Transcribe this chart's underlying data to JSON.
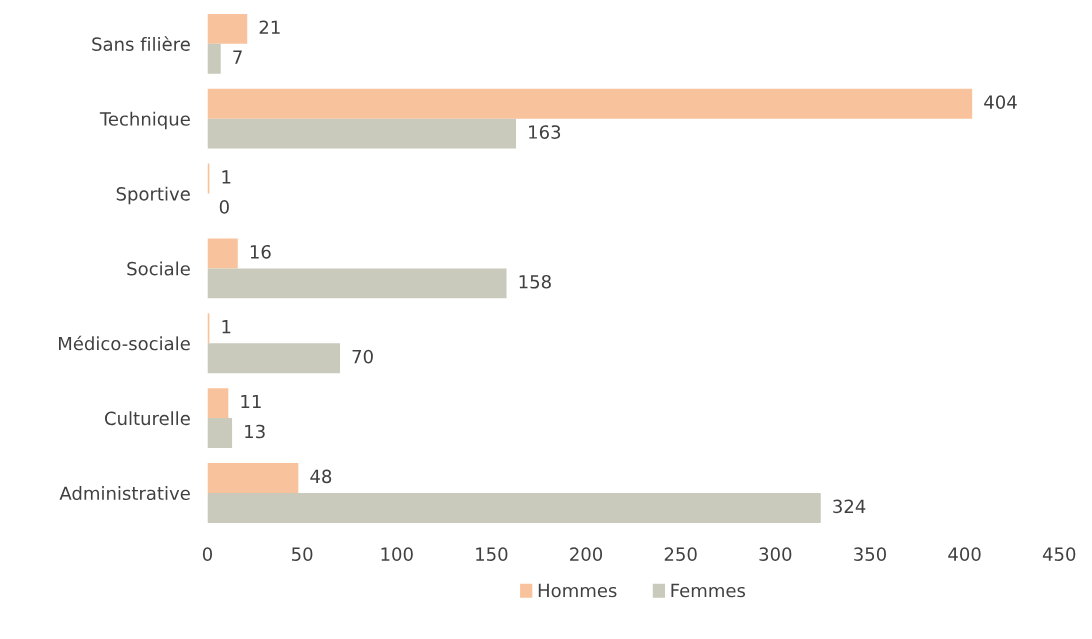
{
  "chart_data": {
    "type": "bar",
    "orientation": "horizontal",
    "categories": [
      "Sans filière",
      "Technique",
      "Sportive",
      "Sociale",
      "Médico-sociale",
      "Culturelle",
      "Administrative"
    ],
    "series": [
      {
        "name": "Hommes",
        "color": "#f8c29c",
        "values": [
          21,
          404,
          1,
          16,
          1,
          11,
          48
        ]
      },
      {
        "name": "Femmes",
        "color": "#c9cabb",
        "values": [
          7,
          163,
          0,
          158,
          70,
          13,
          324
        ]
      }
    ],
    "xlim": [
      0,
      450
    ],
    "xticks": [
      0,
      50,
      100,
      150,
      200,
      250,
      300,
      350,
      400,
      450
    ],
    "data_labels": true,
    "legend": "bottom",
    "grid": false
  }
}
